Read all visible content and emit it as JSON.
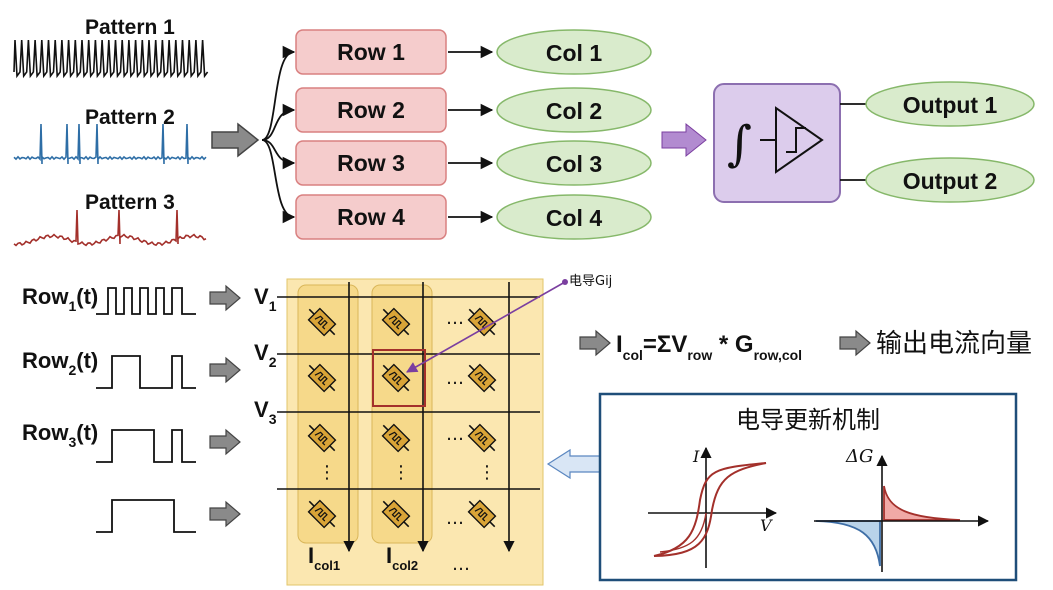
{
  "patterns": [
    "Pattern 1",
    "Pattern 2",
    "Pattern 3"
  ],
  "rows": [
    "Row 1",
    "Row 2",
    "Row 3",
    "Row 4"
  ],
  "cols": [
    "Col 1",
    "Col 2",
    "Col 3",
    "Col 4"
  ],
  "outputs": [
    "Output 1",
    "Output 2"
  ],
  "integrator_symbol": "∫",
  "conductance_note": "电导Gij",
  "input_signals": [
    {
      "base": "Row",
      "sub": "1",
      "suffix": "(t)"
    },
    {
      "base": "Row",
      "sub": "2",
      "suffix": "(t)"
    },
    {
      "base": "Row",
      "sub": "3",
      "suffix": "(t)"
    }
  ],
  "voltages": [
    {
      "base": "V",
      "sub": "1"
    },
    {
      "base": "V",
      "sub": "2"
    },
    {
      "base": "V",
      "sub": "3"
    }
  ],
  "col_currents": [
    {
      "base": "I",
      "sub": "col1"
    },
    {
      "base": "I",
      "sub": "col2"
    }
  ],
  "ellipsis": "…",
  "vdots": "⋮",
  "equation": {
    "lhs_base": "I",
    "lhs_sub": "col",
    "eq_part": "=ΣV",
    "v_sub": "row",
    "mul_part": " * G",
    "g_sub": "row,col"
  },
  "output_label": "输出电流向量",
  "update_panel": {
    "title": "电导更新机制",
    "iv_xlabel": "V",
    "iv_ylabel": "I",
    "dg_ylabel": "ΔG"
  },
  "colors": {
    "row_fill": "#f5cccc",
    "row_stroke": "#d98080",
    "col_fill": "#d9ebcc",
    "col_stroke": "#86b86a",
    "integrator_fill": "#dcccec",
    "integrator_stroke": "#8c6fb0",
    "crossbar_fill": "#fbe7b0",
    "device_fill": "#d9a437",
    "pattern2": "#2e6ea6",
    "pattern3": "#a3302b",
    "panel_border": "#1f4e79",
    "selected_cell": "#a3302b",
    "pointer": "#7b3fa0"
  }
}
